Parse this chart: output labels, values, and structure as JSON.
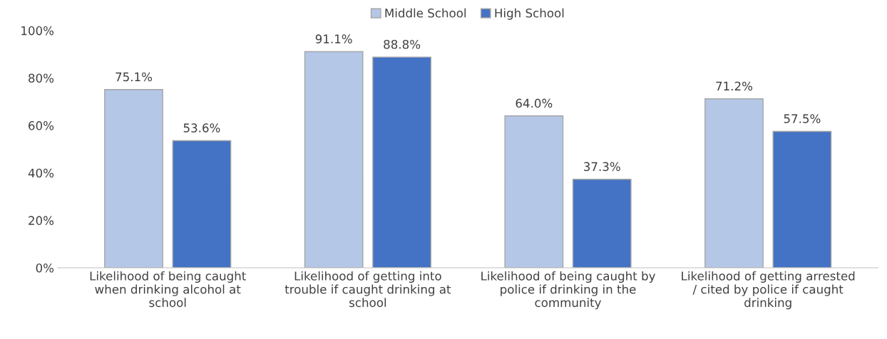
{
  "chart_data": {
    "type": "bar",
    "categories": [
      "Likelihood of being caught\nwhen drinking alcohol at\nschool",
      "Likelihood of getting into\ntrouble if caught drinking at\nschool",
      "Likelihood of being caught by\npolice if drinking in the\ncommunity",
      "Likelihood of getting arrested\n/ cited by police if caught\ndrinking"
    ],
    "series": [
      {
        "name": "Middle School",
        "color": "#b4c7e7",
        "values": [
          75.1,
          91.1,
          64.0,
          71.2
        ],
        "value_labels": [
          "75.1%",
          "91.1%",
          "64.0%",
          "71.2%"
        ]
      },
      {
        "name": "High School",
        "color": "#4472c4",
        "values": [
          53.6,
          88.8,
          37.3,
          57.5
        ],
        "value_labels": [
          "53.6%",
          "88.8%",
          "37.3%",
          "57.5%"
        ]
      }
    ],
    "ylim": [
      0,
      100
    ],
    "yticks": [
      {
        "value": 0,
        "label": "0%"
      },
      {
        "value": 20,
        "label": "20%"
      },
      {
        "value": 40,
        "label": "40%"
      },
      {
        "value": 60,
        "label": "60%"
      },
      {
        "value": 80,
        "label": "80%"
      },
      {
        "value": 100,
        "label": "100%"
      }
    ],
    "grid": false,
    "legend": "top"
  }
}
